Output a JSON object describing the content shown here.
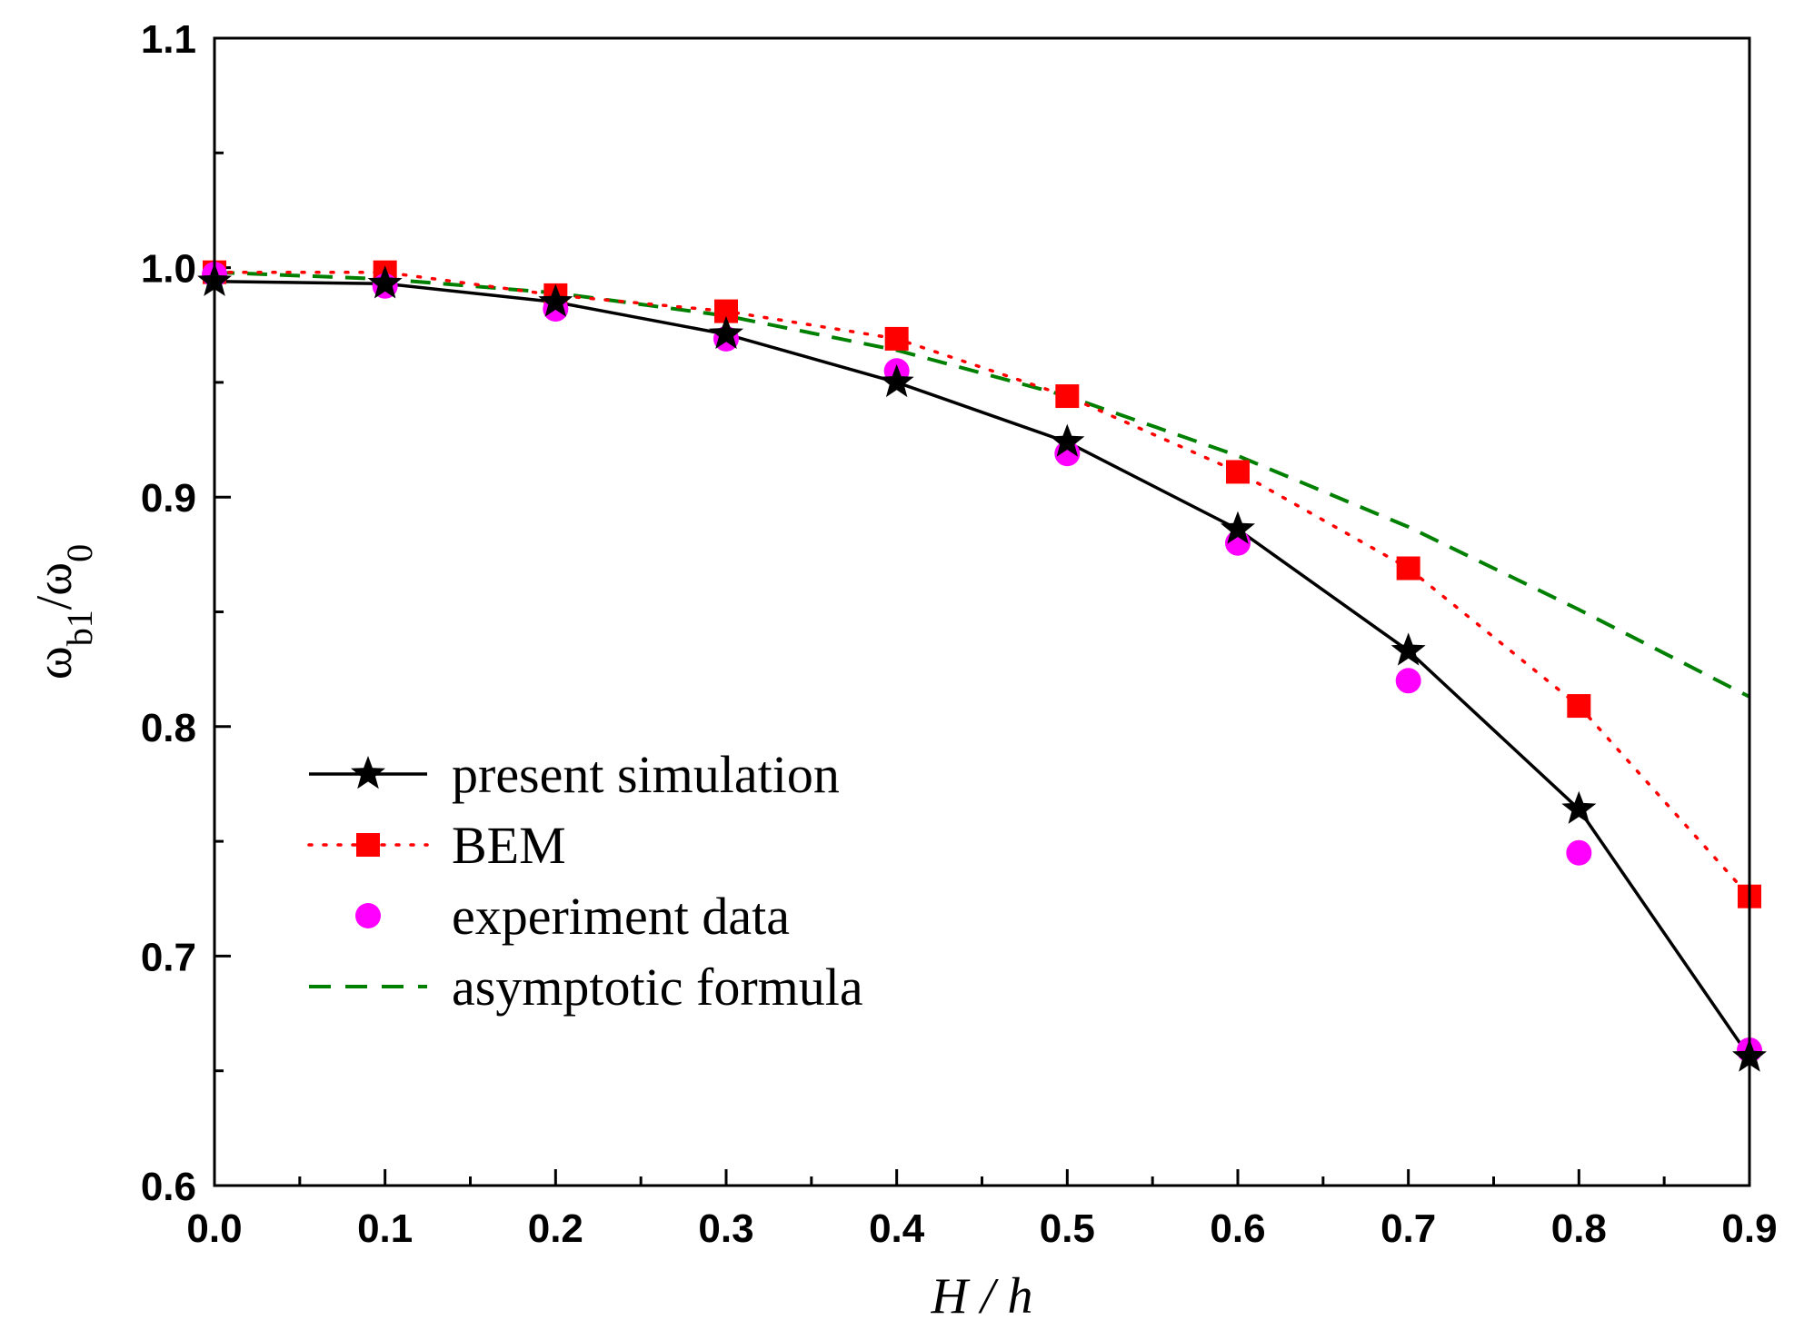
{
  "chart_data": {
    "type": "line",
    "title": "",
    "xlabel": "H / h",
    "ylabel": "ω_b1/ω_0",
    "xlim": [
      0.0,
      0.9
    ],
    "ylim": [
      0.6,
      1.1
    ],
    "x_ticks": [
      "0.0",
      "0.1",
      "0.2",
      "0.3",
      "0.4",
      "0.5",
      "0.6",
      "0.7",
      "0.8",
      "0.9"
    ],
    "y_ticks": [
      "0.6",
      "0.7",
      "0.8",
      "0.9",
      "1.0",
      "1.1"
    ],
    "grid": false,
    "legend_position": "lower-left",
    "series": [
      {
        "name": "present simulation",
        "style": "solid-line-star",
        "color": "#000000",
        "x": [
          0.0,
          0.1,
          0.2,
          0.3,
          0.4,
          0.5,
          0.6,
          0.7,
          0.8,
          0.9
        ],
        "values": [
          0.994,
          0.993,
          0.985,
          0.971,
          0.95,
          0.924,
          0.886,
          0.833,
          0.764,
          0.656
        ]
      },
      {
        "name": "BEM",
        "style": "dotted-line-square",
        "color": "#ff0000",
        "x": [
          0.0,
          0.1,
          0.2,
          0.3,
          0.4,
          0.5,
          0.6,
          0.7,
          0.8,
          0.9
        ],
        "values": [
          0.998,
          0.998,
          0.988,
          0.981,
          0.969,
          0.944,
          0.911,
          0.869,
          0.809,
          0.726
        ]
      },
      {
        "name": "experiment data",
        "style": "circle-marker",
        "color": "#ff00ff",
        "x": [
          0.0,
          0.1,
          0.2,
          0.3,
          0.4,
          0.5,
          0.6,
          0.7,
          0.8,
          0.9
        ],
        "values": [
          0.997,
          0.992,
          0.982,
          0.969,
          0.955,
          0.919,
          0.88,
          0.82,
          0.745,
          0.659
        ]
      },
      {
        "name": "asymptotic formula",
        "style": "dashed-line",
        "color": "#008000",
        "x": [
          0.0,
          0.1,
          0.2,
          0.3,
          0.4,
          0.5,
          0.6,
          0.7,
          0.8,
          0.9
        ],
        "values": [
          0.998,
          0.995,
          0.989,
          0.979,
          0.964,
          0.944,
          0.918,
          0.887,
          0.851,
          0.813
        ]
      }
    ]
  }
}
